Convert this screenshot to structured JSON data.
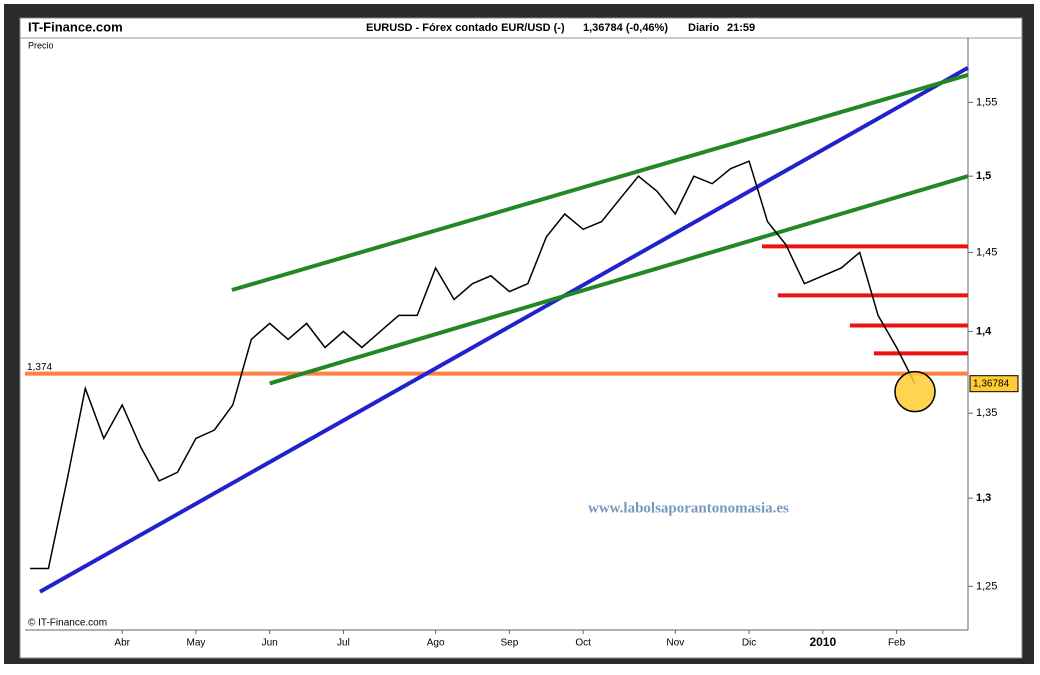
{
  "chart_data": {
    "type": "line",
    "site": "IT-Finance.com",
    "title": "EURUSD - Fórex contado EUR/USD (-)",
    "quote": "1,36784 (-0,46%)",
    "period": "Diario",
    "time": "21:59",
    "y_label": "Precio",
    "copyright": "© IT-Finance.com",
    "watermark": "www.labolsaporantonomasia.es",
    "categories": [
      null,
      null,
      null,
      null,
      null,
      "Abr",
      null,
      null,
      null,
      "May",
      null,
      null,
      null,
      "Jun",
      null,
      null,
      null,
      "Jul",
      null,
      null,
      null,
      null,
      "Ago",
      null,
      null,
      null,
      "Sep",
      null,
      null,
      null,
      "Oct",
      null,
      null,
      null,
      null,
      "Nov",
      null,
      null,
      null,
      "Dic",
      null,
      null,
      null,
      "2010",
      null,
      null,
      null,
      "Feb",
      null
    ],
    "values": [
      1.26,
      1.26,
      1.31,
      1.365,
      1.335,
      1.355,
      1.33,
      1.31,
      1.315,
      1.335,
      1.34,
      1.355,
      1.395,
      1.405,
      1.395,
      1.405,
      1.39,
      1.4,
      1.39,
      1.4,
      1.41,
      1.41,
      1.44,
      1.42,
      1.43,
      1.435,
      1.425,
      1.43,
      1.46,
      1.475,
      1.465,
      1.47,
      1.485,
      1.5,
      1.49,
      1.475,
      1.5,
      1.495,
      1.505,
      1.51,
      1.47,
      1.455,
      1.43,
      1.435,
      1.44,
      1.45,
      1.41,
      1.39,
      1.36784
    ],
    "color": "#000000",
    "log_scale": true,
    "grid": false,
    "ylim": [
      1.226,
      1.595
    ],
    "yticks": [
      {
        "value": 1.25,
        "label": "1,25"
      },
      {
        "value": 1.3,
        "label": "1,3"
      },
      {
        "value": 1.35,
        "label": "1,35"
      },
      {
        "value": 1.4,
        "label": "1,4"
      },
      {
        "value": 1.45,
        "label": "1,45"
      },
      {
        "value": 1.5,
        "label": "1,5"
      },
      {
        "value": 1.55,
        "label": "1,55"
      }
    ],
    "hline": {
      "value": 1.374,
      "label": "1,374",
      "color": "#ff8040"
    },
    "price_tag": {
      "value": 1.36784,
      "label": "1,36784",
      "color": "#ffcc33"
    },
    "trendlines": [
      {
        "color": "#2222cc",
        "points": [
          [
            0.54,
            1.247
          ],
          [
            50.87,
            1.574
          ]
        ]
      },
      {
        "color": "#228822",
        "points": [
          [
            10.95,
            1.426
          ],
          [
            50.87,
            1.569
          ]
        ]
      },
      {
        "color": "#228822",
        "points": [
          [
            13.0,
            1.368
          ],
          [
            50.87,
            1.5
          ]
        ]
      },
      {
        "color": "#ee1111",
        "points": [
          [
            39.7,
            1.4539
          ],
          [
            50.87,
            1.4539
          ]
        ]
      },
      {
        "color": "#ee1111",
        "points": [
          [
            40.56,
            1.4226
          ],
          [
            50.87,
            1.4226
          ]
        ]
      },
      {
        "color": "#ee1111",
        "points": [
          [
            44.47,
            1.4037
          ],
          [
            50.87,
            1.4037
          ]
        ]
      },
      {
        "color": "#ee1111",
        "points": [
          [
            45.77,
            1.3864
          ],
          [
            50.87,
            1.3864
          ]
        ]
      }
    ]
  }
}
